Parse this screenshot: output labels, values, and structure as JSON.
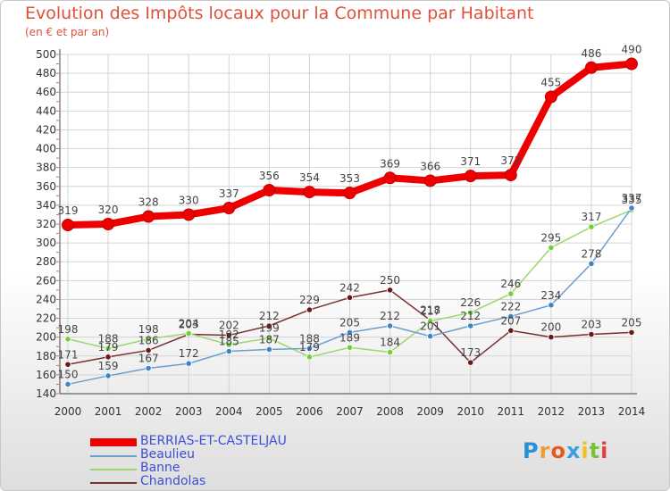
{
  "title": "Evolution des Impôts locaux pour la Commune par Habitant",
  "subtitle": "(en € et par an)",
  "logo": "Proxiti",
  "chart_data": {
    "type": "line",
    "x": [
      2000,
      2001,
      2002,
      2003,
      2004,
      2005,
      2006,
      2007,
      2008,
      2009,
      2010,
      2011,
      2012,
      2013,
      2014
    ],
    "ylim": [
      140,
      500
    ],
    "yticks": [
      140,
      160,
      180,
      200,
      220,
      240,
      260,
      280,
      300,
      320,
      340,
      360,
      380,
      400,
      420,
      440,
      460,
      480,
      500
    ],
    "grid": true,
    "legend_position": "bottom-left",
    "series": [
      {
        "name": "BERRIAS-ET-CASTELJAU",
        "color": "#ee0000",
        "marker": "#ee0000",
        "values": [
          319,
          320,
          328,
          330,
          337,
          356,
          354,
          353,
          369,
          366,
          371,
          372,
          455,
          486,
          490
        ]
      },
      {
        "name": "Beaulieu",
        "color": "#6a9fd0",
        "marker": "#3f84c8",
        "values": [
          150,
          159,
          167,
          172,
          185,
          187,
          188,
          205,
          212,
          201,
          212,
          222,
          234,
          278,
          337
        ]
      },
      {
        "name": "Banne",
        "color": "#9ad86e",
        "marker": "#72d03a",
        "values": [
          198,
          188,
          198,
          204,
          192,
          199,
          179,
          189,
          184,
          217,
          226,
          246,
          295,
          317,
          335
        ]
      },
      {
        "name": "Chandolas",
        "color": "#7a3030",
        "marker": "#6a1818",
        "values": [
          171,
          179,
          186,
          203,
          202,
          212,
          229,
          242,
          250,
          218,
          173,
          207,
          200,
          203,
          205
        ]
      }
    ]
  }
}
